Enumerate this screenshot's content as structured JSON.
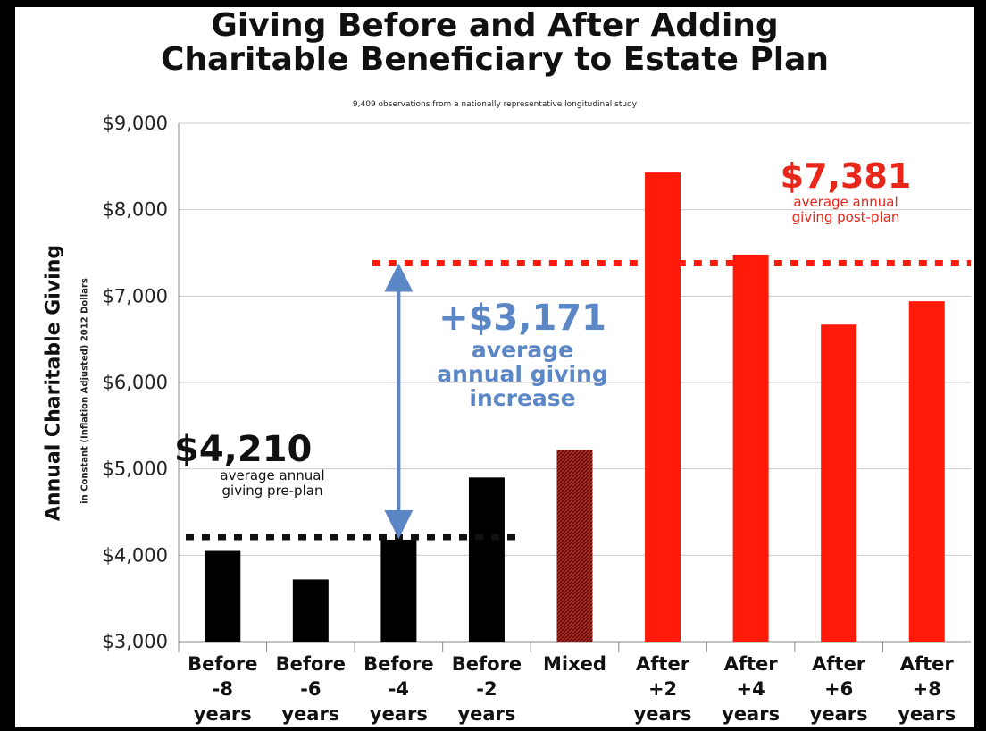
{
  "title": {
    "line1": "Giving Before and After Adding",
    "line2": "Charitable Beneficiary to Estate Plan"
  },
  "subtitle": "9,409 observations from a nationally representative longitudinal study",
  "ylabel": "Annual Charitable Giving",
  "ylabel_sub": "in Constant (Inflation Adjusted) 2012 Dollars",
  "annotations": {
    "pre": {
      "value": "$4,210",
      "text1": "average annual",
      "text2": "giving pre-plan"
    },
    "increase": {
      "value": "+$3,171",
      "text1": "average",
      "text2": "annual giving",
      "text3": "increase"
    },
    "post": {
      "value": "$7,381",
      "text1": "average annual",
      "text2": "giving post-plan"
    }
  },
  "colors": {
    "before": "#000000",
    "mixed": "#8b1a1a",
    "after": "#ff1a0a",
    "arrow": "#5b87c7",
    "increase_text": "#5b87c7",
    "post_text": "#e8261a",
    "grid": "#cccccc"
  },
  "chart_data": {
    "type": "bar",
    "title": "Giving Before and After Adding Charitable Beneficiary to Estate Plan",
    "ylabel": "Annual Charitable Giving in Constant (Inflation Adjusted) 2012 Dollars",
    "ylim": [
      3000,
      9000
    ],
    "yticks": [
      "$3,000",
      "$4,000",
      "$5,000",
      "$6,000",
      "$7,000",
      "$8,000",
      "$9,000"
    ],
    "ytick_values": [
      3000,
      4000,
      5000,
      6000,
      7000,
      8000,
      9000
    ],
    "grid": true,
    "categories": [
      [
        "Before",
        "-8",
        "years"
      ],
      [
        "Before",
        "-6",
        "years"
      ],
      [
        "Before",
        "-4",
        "years"
      ],
      [
        "Before",
        "-2",
        "years"
      ],
      [
        "Mixed"
      ],
      [
        "After",
        "+2",
        "years"
      ],
      [
        "After",
        "+4",
        "years"
      ],
      [
        "After",
        "+6",
        "years"
      ],
      [
        "After",
        "+8",
        "years"
      ]
    ],
    "values": [
      4050,
      3720,
      4180,
      4900,
      5220,
      8430,
      7480,
      6670,
      6940
    ],
    "groups": [
      "before",
      "before",
      "before",
      "before",
      "mixed",
      "after",
      "after",
      "after",
      "after"
    ],
    "reference_lines": [
      {
        "value": 4210,
        "label": "$4,210",
        "span": "before"
      },
      {
        "value": 7381,
        "label": "$7,381",
        "span": "after"
      }
    ]
  }
}
